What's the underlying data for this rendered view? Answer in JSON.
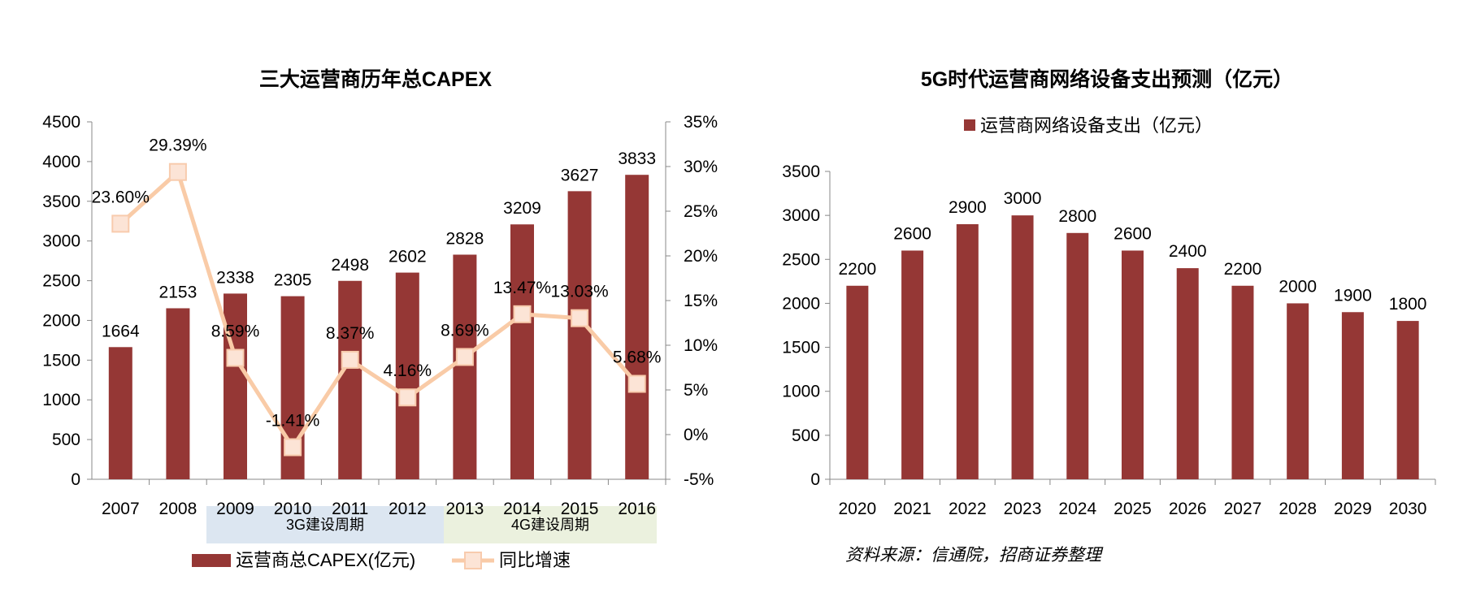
{
  "chart_data": [
    {
      "type": "bar+line",
      "title": "三大运营商历年总CAPEX",
      "categories": [
        "2007",
        "2008",
        "2009",
        "2010",
        "2011",
        "2012",
        "2013",
        "2014",
        "2015",
        "2016"
      ],
      "series": [
        {
          "name": "运营商总CAPEX(亿元)",
          "type": "bar",
          "axis": "left",
          "values": [
            1664,
            2153,
            2338,
            2305,
            2498,
            2602,
            2828,
            3209,
            3627,
            3833
          ],
          "labels": [
            "1664",
            "2153",
            "2338",
            "2305",
            "2498",
            "2602",
            "2828",
            "3209",
            "3627",
            "3833"
          ]
        },
        {
          "name": "同比增速",
          "type": "line",
          "axis": "right",
          "values": [
            23.6,
            29.39,
            8.59,
            -1.41,
            8.37,
            4.16,
            8.69,
            13.47,
            13.03,
            5.68
          ],
          "labels": [
            "23.60%",
            "29.39%",
            "8.59%",
            "-1.41%",
            "8.37%",
            "4.16%",
            "8.69%",
            "13.47%",
            "13.03%",
            "5.68%"
          ]
        }
      ],
      "y_left": {
        "range": [
          0,
          4500
        ],
        "ticks": [
          "0",
          "500",
          "1000",
          "1500",
          "2000",
          "2500",
          "3000",
          "3500",
          "4000",
          "4500"
        ]
      },
      "y_right": {
        "range": [
          -5,
          35
        ],
        "ticks": [
          "-5%",
          "0%",
          "5%",
          "10%",
          "15%",
          "20%",
          "25%",
          "30%",
          "35%"
        ]
      },
      "annotations": [
        {
          "text": "3G建设周期",
          "from": "2009",
          "to": "2012",
          "color": "#DCE6F1"
        },
        {
          "text": "4G建设周期",
          "from": "2013",
          "to": "2016",
          "color": "#EBF1DE"
        }
      ],
      "legend": "bottom",
      "colors": {
        "bar": "#953735",
        "line": "#F9CBA7",
        "marker_fill": "#FCE4D6"
      }
    },
    {
      "type": "bar",
      "title": "5G时代运营商网络设备支出预测（亿元）",
      "categories": [
        "2020",
        "2021",
        "2022",
        "2023",
        "2024",
        "2025",
        "2026",
        "2027",
        "2028",
        "2029",
        "2030"
      ],
      "values": [
        2200,
        2600,
        2900,
        3000,
        2800,
        2600,
        2400,
        2200,
        2000,
        1900,
        1800
      ],
      "labels": [
        "2200",
        "2600",
        "2900",
        "3000",
        "2800",
        "2600",
        "2400",
        "2200",
        "2000",
        "1900",
        "1800"
      ],
      "series_name": "运营商网络设备支出（亿元）",
      "ylim": [
        0,
        3500
      ],
      "y_ticks": [
        "0",
        "500",
        "1000",
        "1500",
        "2000",
        "2500",
        "3000",
        "3500"
      ],
      "legend": "top",
      "colors": {
        "bar": "#953735"
      },
      "source": "资料来源：信通院，招商证券整理"
    }
  ]
}
